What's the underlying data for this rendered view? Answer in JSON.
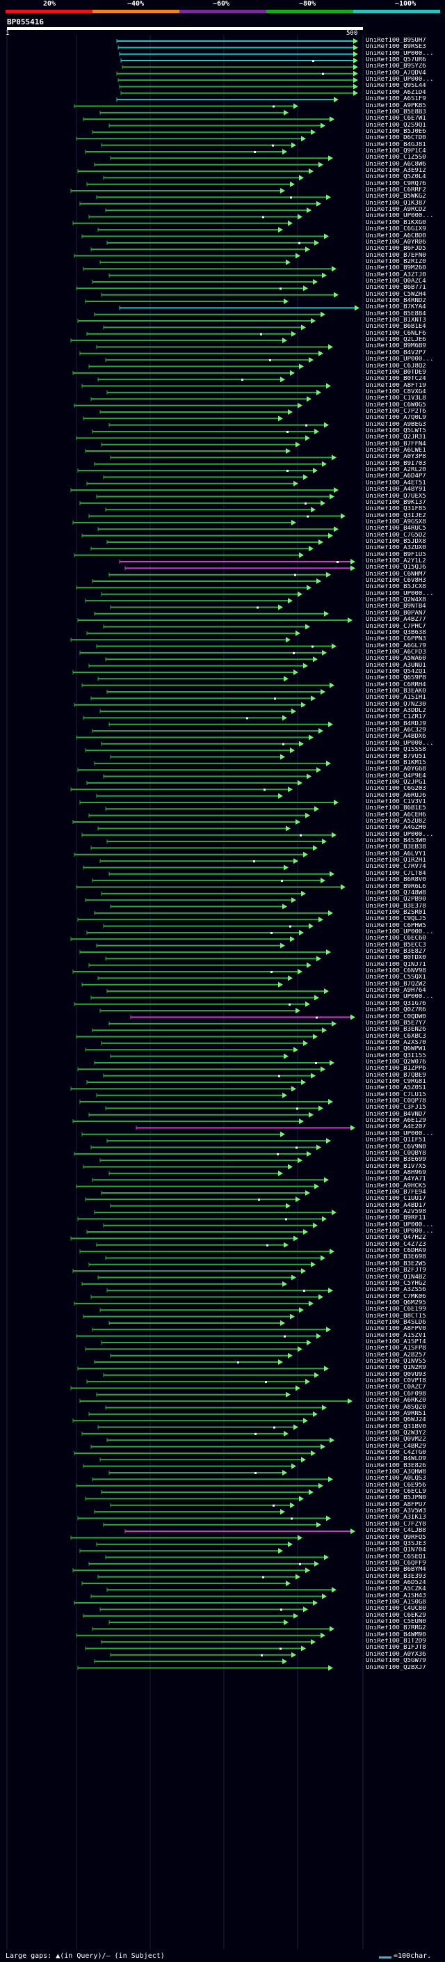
{
  "header": {
    "pct_labels": [
      "20%",
      "~40%",
      "~60%",
      "~80%",
      "~100%"
    ],
    "colors": [
      "#e8131e",
      "#e8862a",
      "#7a2a9c",
      "#23a323",
      "#29c1c1"
    ],
    "query_id": "BP055416",
    "query_start": "1",
    "query_end": "500"
  },
  "hit_colors": {
    "cyan": "#29c1c1",
    "green": "#2fa83a",
    "magenta": "#c73fc7",
    "arrow": "#7cf07c"
  },
  "hits": [
    "UniRef100_B9SUH7",
    "UniRef100_B9RSE3",
    "UniRef100_UP000...",
    "UniRef100_Q57UR6",
    "UniRef100_B9SYZ6",
    "UniRef100_A7QDV4",
    "UniRef100_UP000...",
    "UniRef100_Q9SL44",
    "UniRef100_A6Z1D4",
    "UniRef100_A6S1F9",
    "UniRef100_A9PKB5",
    "UniRef100_B5E8B3",
    "UniRef100_C6E7W1",
    "UniRef100_Q2S9Q1",
    "UniRef100_B5J0E6",
    "UniRef100_D6CTD0",
    "UniRef100_B4GJ81",
    "UniRef100_Q9P1C4",
    "UniRef100_C1Z5S0",
    "UniRef100_A6C8W6",
    "UniRef100_A3E912",
    "UniRef100_Q5Z0L4",
    "UniRef100_C9RQ76",
    "UniRef100_C6RRF2",
    "UniRef100_B5WKG2",
    "UniRef100_Q1K387",
    "UniRef100_A9RCD2",
    "UniRef100_UP000...",
    "UniRef100_B1KXG0",
    "UniRef100_C6GIX9",
    "UniRef100_A6CBD0",
    "UniRef100_A0YR06",
    "UniRef100_B6FJD5",
    "UniRef100_B7EFN0",
    "UniRef100_B2RIZ0",
    "UniRef100_B9M260",
    "UniRef100_A3ZTJ0",
    "UniRef100_Q0AZC4",
    "UniRef100_B6B771",
    "UniRef100_C5WZH4",
    "UniRef100_B4RND2",
    "UniRef100_B7KYA4",
    "UniRef100_B5E884",
    "UniRef100_B1XNT3",
    "UniRef100_B6B1E4",
    "UniRef100_C6NLF6",
    "UniRef100_Q2LJE6",
    "UniRef100_B9M6B9",
    "UniRef100_B4V2P7",
    "UniRef100_UP000...",
    "UniRef100_C6J8Q2",
    "UniRef100_B0TDE9",
    "UniRef100_B0TC24",
    "UniRef100_A8FT19",
    "UniRef100_C8VXG4",
    "UniRef100_C1V3L8",
    "UniRef100_C6W0G5",
    "UniRef100_C7P2T6",
    "UniRef100_A7Q0L9",
    "UniRef100_A9BEG3",
    "UniRef100_Q5LWT5",
    "UniRef100_Q2JR31",
    "UniRef100_B7FFN4",
    "UniRef100_A6LWE1",
    "UniRef100_A0Y3P8",
    "UniRef100_B9I703",
    "UniRef100_A2RL20",
    "UniRef100_A6D4P7",
    "UniRef100_A4ET51",
    "UniRef100_A4BY91",
    "UniRef100_Q7UEX5",
    "UniRef100_B9K137",
    "UniRef100_Q31F85",
    "UniRef100_Q3IJE2",
    "UniRef100_A9GSX8",
    "UniRef100_B4RUC5",
    "UniRef100_C7G5D2",
    "UniRef100_B5JDX8",
    "UniRef100_A3ZUX0",
    "UniRef100_B9F1U5",
    "UniRef100_A2Y1L2",
    "UniRef100_Q15QJ6",
    "UniRef100_C6NHM7",
    "UniRef100_C6V8H3",
    "UniRef100_B5JCX8",
    "UniRef100_UP000...",
    "UniRef100_Q2W4X8",
    "UniRef100_B9NTB4",
    "UniRef100_B0PAN7",
    "UniRef100_A4BZ77",
    "UniRef100_C7PHC7",
    "UniRef100_Q3B638",
    "UniRef100_C6PPN3",
    "UniRef100_A6GL79",
    "UniRef100_A6CFD3",
    "UniRef100_A5WA60",
    "UniRef100_A3UNU1",
    "UniRef100_Q54ZQ1",
    "UniRef100_Q6S9P8",
    "UniRef100_C6RRH4",
    "UniRef100_B3EAK0",
    "UniRef100_A1SIH1",
    "UniRef100_Q7NZ30",
    "UniRef100_A3DDL2",
    "UniRef100_C1ZR17",
    "UniRef100_B4RDJ9",
    "UniRef100_A6C329",
    "UniRef100_A4BDX6",
    "UniRef100_UP000...",
    "UniRef100_Q1SSS8",
    "UniRef100_B7VU51",
    "UniRef100_B1KM15",
    "UniRef100_A0YG68",
    "UniRef100_Q4P9E4",
    "UniRef100_Q2JPG1",
    "UniRef100_C6G203",
    "UniRef100_A6RUJ6",
    "UniRef100_C1V3V1",
    "UniRef100_B6B1E5",
    "UniRef100_A6CEH6",
    "UniRef100_A5ZU82",
    "UniRef100_A4GZH0",
    "UniRef100_UP000...",
    "UniRef100_B4S3W0",
    "UniRef100_B3EB38",
    "UniRef100_A6LVY1",
    "UniRef100_Q1R2H1",
    "UniRef100_C7RV74",
    "UniRef100_C7LT84",
    "UniRef100_B6R8V0",
    "UniRef100_B9R6L6",
    "UniRef100_Q748W8",
    "UniRef100_Q2PB90",
    "UniRef100_B3E378",
    "UniRef100_B2SR01",
    "UniRef100_C9QLJ5",
    "UniRef100_C6PHW5",
    "UniRef100_UP000...",
    "UniRef100_C6EC60",
    "UniRef100_B5ECC3",
    "UniRef100_B3E827",
    "UniRef100_B0TDX0",
    "UniRef100_Q1NJ71",
    "UniRef100_C6NV98",
    "UniRef100_C5SQX1",
    "UniRef100_B7QZW2",
    "UniRef100_A9H764",
    "UniRef100_UP000...",
    "UniRef100_Q31G76",
    "UniRef100_Q0Z7R6",
    "UniRef100_C0QDW0",
    "UniRef100_B5E7Y7",
    "UniRef100_B3EN26",
    "UniRef100_C6XBC3",
    "UniRef100_A2XS70",
    "UniRef100_Q6WPW1",
    "UniRef100_Q3I155",
    "UniRef100_Q2W076",
    "UniRef100_B1ZPP6",
    "UniRef100_B7QBE9",
    "UniRef100_C9RG81",
    "UniRef100_A5Z0S1",
    "UniRef100_C7LU15",
    "UniRef100_C0QP78",
    "UniRef100_C3FJ15",
    "UniRef100_B4VND7",
    "UniRef100_A6E129",
    "UniRef100_A4E207",
    "UniRef100_UP000...",
    "UniRef100_Q1IF51",
    "UniRef100_C6V9N0",
    "UniRef100_C0QBY8",
    "UniRef100_B3E699",
    "UniRef100_B1V7X5",
    "UniRef100_A8H969",
    "UniRef100_A4YA71",
    "UniRef100_A9HCK5",
    "UniRef100_B7FE94",
    "UniRef100_C1UU17",
    "UniRef100_A4BD17",
    "UniRef100_A2V598",
    "UniRef100_B9RF11",
    "UniRef100_UP000...",
    "UniRef100_UP000...",
    "UniRef100_Q47H22",
    "UniRef100_C4Z7Z3",
    "UniRef100_C6DHA9",
    "UniRef100_B3E698",
    "UniRef100_B3E2W5",
    "UniRef100_B2FJT9",
    "UniRef100_Q1N4B2",
    "UniRef100_C5YHG2",
    "UniRef100_A3ZS56",
    "UniRef100_C7MK06",
    "UniRef100_Q6M295",
    "UniRef100_C6E199",
    "UniRef100_B8CTI5",
    "UniRef100_B4SLD6",
    "UniRef100_A8FPV0",
    "UniRef100_A1SZV1",
    "UniRef100_A1SPT4",
    "UniRef100_A1SFP8",
    "UniRef100_A2B257",
    "UniRef100_Q1NVS5",
    "UniRef100_Q1N2R9",
    "UniRef100_Q0VU93",
    "UniRef100_C0VPT8",
    "UniRef100_C0AZC7",
    "UniRef100_C6F098",
    "UniRef100_A6RKZ0",
    "UniRef100_A8SQZ0",
    "UniRef100_A9RNS1",
    "UniRef100_Q6WJ24",
    "UniRef100_Q31BV0",
    "UniRef100_Q2W3Y2",
    "UniRef100_Q0VM22",
    "UniRef100_C4BR29",
    "UniRef100_C4ZTG0",
    "UniRef100_B4WLO9",
    "UniRef100_B3E826",
    "UniRef100_A3QHW8",
    "UniRef100_A0LQS3",
    "UniRef100_C6E956",
    "UniRef100_C6ECL9",
    "UniRef100_B5JPN0",
    "UniRef100_A8FPU7",
    "UniRef100_A3V5W3",
    "UniRef100_A3IK13",
    "UniRef100_C7FZY8",
    "UniRef100_C4LJB8",
    "UniRef100_Q9RFQ5",
    "UniRef100_Q3SJE3",
    "UniRef100_Q1N704",
    "UniRef100_C6SEQ1",
    "UniRef100_C6QFF9",
    "UniRef100_B6BYM4",
    "UniRef100_B3E393",
    "UniRef100_A6D524",
    "UniRef100_A5CZK4",
    "UniRef100_A1SH43",
    "UniRef100_A1S0G8",
    "UniRef100_C4UC80",
    "UniRef100_C6EK29",
    "UniRef100_C5EUN0",
    "UniRef100_B7RRG2",
    "UniRef100_B4WM90",
    "UniRef100_B1T2D9",
    "UniRef100_B1FJT8",
    "UniRef100_A0YX36",
    "UniRef100_Q5GW79",
    "UniRef100_Q2BXJ7"
  ],
  "footer": {
    "legend": "Large gaps: ▲(in Query)/— (in Subject)",
    "scale_label": "=100char."
  }
}
